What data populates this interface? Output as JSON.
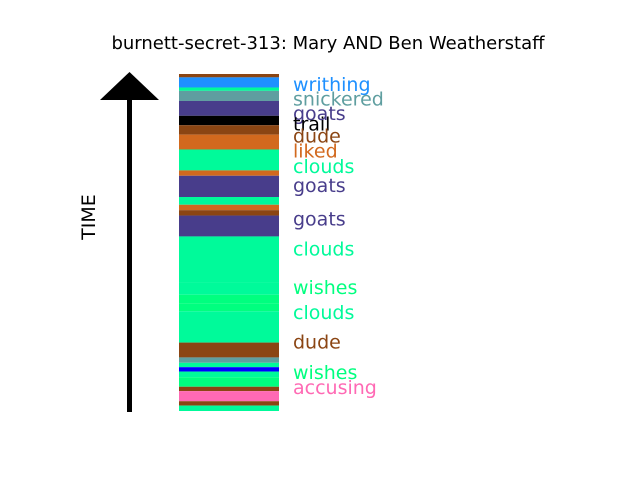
{
  "chart_data": {
    "type": "bar",
    "title": "burnett-secret-313: Mary AND Ben Weatherstaff",
    "ylabel": "TIME",
    "ylim": [
      0,
      100
    ],
    "segments": [
      {
        "y0": 99.0,
        "y1": 100.0,
        "color": "#8B4513"
      },
      {
        "y0": 96.0,
        "y1": 99.0,
        "color": "#1E90FF"
      },
      {
        "y0": 95.0,
        "y1": 96.0,
        "color": "#00FA9A"
      },
      {
        "y0": 92.0,
        "y1": 95.0,
        "color": "#5F9EA0"
      },
      {
        "y0": 87.6,
        "y1": 92.0,
        "color": "#483D8B"
      },
      {
        "y0": 84.8,
        "y1": 87.6,
        "color": "#000000"
      },
      {
        "y0": 82.0,
        "y1": 84.8,
        "color": "#8B4513"
      },
      {
        "y0": 77.6,
        "y1": 82.0,
        "color": "#D2691E"
      },
      {
        "y0": 71.4,
        "y1": 77.6,
        "color": "#00FA9A"
      },
      {
        "y0": 69.8,
        "y1": 71.4,
        "color": "#D2691E"
      },
      {
        "y0": 63.5,
        "y1": 69.8,
        "color": "#483D8B"
      },
      {
        "y0": 61.2,
        "y1": 63.5,
        "color": "#00FA9A"
      },
      {
        "y0": 59.6,
        "y1": 61.2,
        "color": "#D2691E"
      },
      {
        "y0": 58.0,
        "y1": 59.6,
        "color": "#8B4513"
      },
      {
        "y0": 51.8,
        "y1": 58.0,
        "color": "#483D8B"
      },
      {
        "y0": 38.0,
        "y1": 51.8,
        "color": "#00FA9A"
      },
      {
        "y0": 34.5,
        "y1": 38.0,
        "color": "#00FA9A"
      },
      {
        "y0": 32.0,
        "y1": 34.5,
        "color": "#00FF7F"
      },
      {
        "y0": 29.6,
        "y1": 32.0,
        "color": "#00FF7F"
      },
      {
        "y0": 20.3,
        "y1": 29.6,
        "color": "#00FA9A"
      },
      {
        "y0": 15.9,
        "y1": 20.3,
        "color": "#8B4513"
      },
      {
        "y0": 14.3,
        "y1": 15.9,
        "color": "#5F9EA0"
      },
      {
        "y0": 13.0,
        "y1": 14.3,
        "color": "#00FA9A"
      },
      {
        "y0": 11.7,
        "y1": 13.0,
        "color": "#0000FF"
      },
      {
        "y0": 10.0,
        "y1": 11.7,
        "color": "#00FA9A"
      },
      {
        "y0": 7.2,
        "y1": 10.0,
        "color": "#00FF7F"
      },
      {
        "y0": 5.9,
        "y1": 7.2,
        "color": "#8B4513"
      },
      {
        "y0": 2.9,
        "y1": 5.9,
        "color": "#FF69B4"
      },
      {
        "y0": 1.6,
        "y1": 2.9,
        "color": "#8B4513"
      },
      {
        "y0": 0.0,
        "y1": 1.6,
        "color": "#00FA9A"
      }
    ],
    "labels": [
      {
        "text": "writhing",
        "y": 95.0,
        "color": "#1E90FF"
      },
      {
        "text": "snickered",
        "y": 90.7,
        "color": "#5F9EA0"
      },
      {
        "text": "goats",
        "y": 86.3,
        "color": "#483D8B"
      },
      {
        "text": "trail",
        "y": 83.3,
        "color": "#000000"
      },
      {
        "text": "dude",
        "y": 79.7,
        "color": "#8B4513"
      },
      {
        "text": "liked",
        "y": 75.2,
        "color": "#D2691E"
      },
      {
        "text": "clouds",
        "y": 70.6,
        "color": "#00FA9A"
      },
      {
        "text": "goats",
        "y": 65.0,
        "color": "#483D8B"
      },
      {
        "text": "goats",
        "y": 55.0,
        "color": "#483D8B"
      },
      {
        "text": "clouds",
        "y": 46.2,
        "color": "#00FA9A"
      },
      {
        "text": "wishes",
        "y": 34.7,
        "color": "#00FF7F"
      },
      {
        "text": "clouds",
        "y": 27.3,
        "color": "#00FA9A"
      },
      {
        "text": "dude",
        "y": 18.5,
        "color": "#8B4513"
      },
      {
        "text": "wishes",
        "y": 9.5,
        "color": "#00FF7F"
      },
      {
        "text": "accusing",
        "y": 5.0,
        "color": "#FF69B4"
      }
    ]
  }
}
